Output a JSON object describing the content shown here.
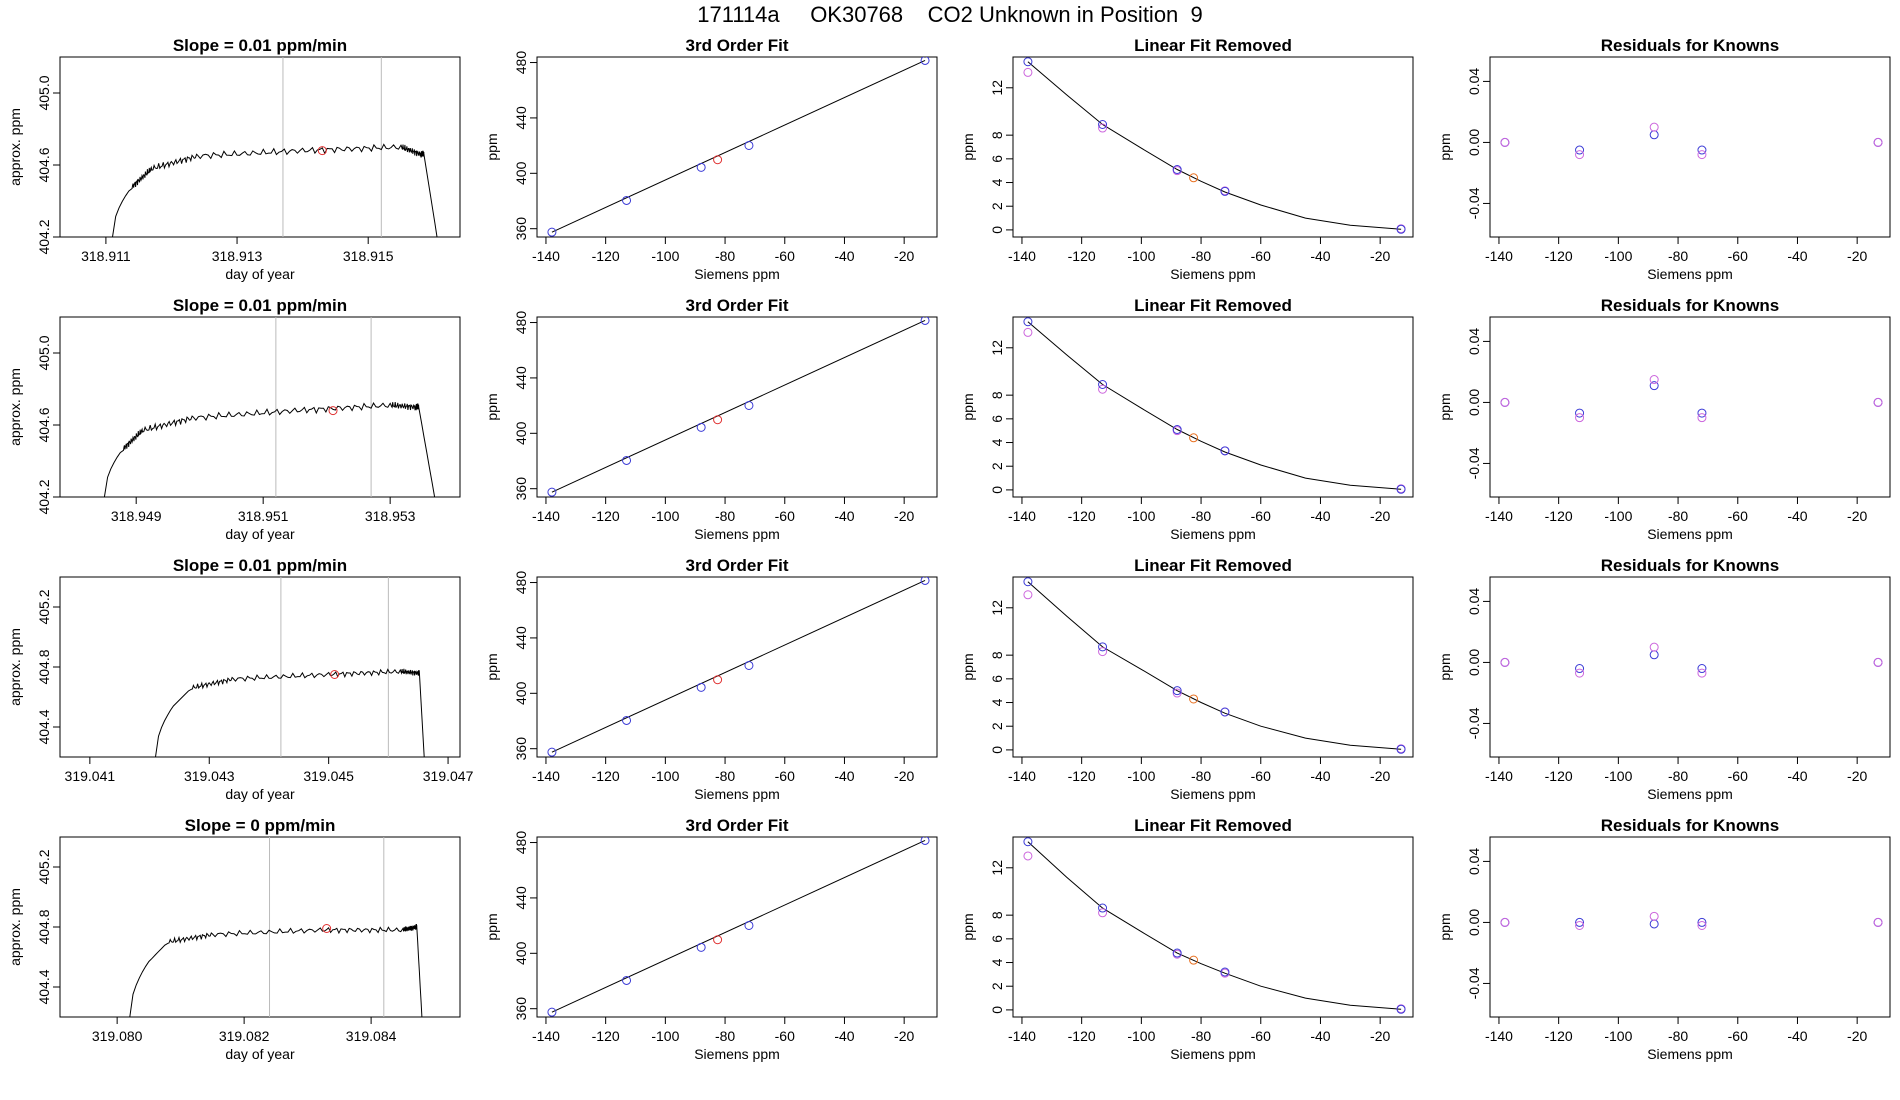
{
  "title": "171114a     OK30768    CO2 Unknown in Position  9",
  "colors": {
    "trace": "#000000",
    "marker_red": "#e03030",
    "known": "#3a3ad6",
    "fit": "#cc66dd",
    "unknown": "#e87020",
    "vline": "#bbbbbb"
  },
  "chart_data": [
    {
      "type": "line",
      "row": 1,
      "col": 1,
      "title": "Slope =  0.01  ppm/min",
      "xlabel": "day of year",
      "ylabel": "approx. ppm",
      "xlim": [
        318.9103,
        318.9164
      ],
      "ylim": [
        404.2,
        405.2
      ],
      "xticks": [
        318.911,
        318.913,
        318.915
      ],
      "yticks": [
        404.2,
        404.6,
        405.0
      ],
      "series": [
        {
          "x": [
            318.9111,
            318.9114,
            318.9117,
            318.9124,
            318.914,
            318.9155,
            318.9158,
            318.91585,
            318.91605
          ],
          "y": [
            404.2,
            404.48,
            404.58,
            404.65,
            404.68,
            404.7,
            404.66,
            404.66,
            404.2
          ]
        }
      ],
      "vlines": [
        318.9137,
        318.9152
      ],
      "marker": {
        "x": 318.9143,
        "y": 404.68
      }
    },
    {
      "type": "line",
      "row": 2,
      "col": 1,
      "title": "Slope =  0.01  ppm/min",
      "xlabel": "day of year",
      "ylabel": "approx. ppm",
      "xlim": [
        318.9478,
        318.9541
      ],
      "ylim": [
        404.2,
        405.2
      ],
      "xticks": [
        318.949,
        318.951,
        318.953
      ],
      "yticks": [
        404.2,
        404.6,
        405.0
      ],
      "series": [
        {
          "x": [
            318.9485,
            318.9488,
            318.9491,
            318.9499,
            318.9515,
            318.953,
            318.9534,
            318.95345,
            318.9537
          ],
          "y": [
            404.2,
            404.47,
            404.57,
            404.64,
            404.68,
            404.71,
            404.7,
            404.7,
            404.2
          ]
        }
      ],
      "vlines": [
        318.9512,
        318.9527
      ],
      "marker": {
        "x": 318.9521,
        "y": 404.68
      }
    },
    {
      "type": "line",
      "row": 3,
      "col": 1,
      "title": "Slope =  0.01  ppm/min",
      "xlabel": "day of year",
      "ylabel": "approx. ppm",
      "xlim": [
        319.0405,
        319.0472
      ],
      "ylim": [
        404.2,
        405.4
      ],
      "xticks": [
        319.041,
        319.043,
        319.045,
        319.047
      ],
      "yticks": [
        404.4,
        404.8,
        405.2
      ],
      "series": [
        {
          "x": [
            319.0421,
            319.0424,
            319.0427,
            319.0434,
            319.045,
            319.0462,
            319.0465,
            319.04652,
            319.0466
          ],
          "y": [
            404.2,
            404.54,
            404.66,
            404.72,
            404.75,
            404.77,
            404.76,
            404.76,
            404.2
          ]
        }
      ],
      "vlines": [
        319.0442,
        319.046
      ],
      "marker": {
        "x": 319.0451,
        "y": 404.75
      }
    },
    {
      "type": "line",
      "row": 4,
      "col": 1,
      "title": "Slope =  0  ppm/min",
      "xlabel": "day of year",
      "ylabel": "approx. ppm",
      "xlim": [
        319.0791,
        319.0854
      ],
      "ylim": [
        404.2,
        405.4
      ],
      "xticks": [
        319.08,
        319.082,
        319.084
      ],
      "yticks": [
        404.4,
        404.8,
        405.2
      ],
      "series": [
        {
          "x": [
            319.0802,
            319.0805,
            319.0808,
            319.0815,
            319.0832,
            319.0845,
            319.0847,
            319.08472,
            319.0848
          ],
          "y": [
            404.2,
            404.57,
            404.7,
            404.75,
            404.78,
            404.78,
            404.8,
            404.8,
            404.2
          ]
        }
      ],
      "vlines": [
        319.0824,
        319.0842
      ],
      "marker": {
        "x": 319.0833,
        "y": 404.79
      }
    },
    {
      "type": "scatter",
      "row": 1,
      "col": 2,
      "title": "3rd Order Fit",
      "xlabel": "Siemens ppm",
      "ylabel": "ppm",
      "xlim": [
        -143,
        -9
      ],
      "ylim": [
        354,
        484
      ],
      "xticks": [
        -140,
        -120,
        -100,
        -80,
        -60,
        -40,
        -20
      ],
      "yticks": [
        360,
        400,
        440,
        480
      ],
      "fit": {
        "type": "linear",
        "x": [
          -138,
          -13
        ],
        "y": [
          357.5,
          481.5
        ]
      },
      "knowns": {
        "x": [
          -138,
          -113,
          -88,
          -72,
          -13
        ],
        "y": [
          357.5,
          380.4,
          404.3,
          420.1,
          481.5
        ]
      },
      "unknown": {
        "x": -82.5,
        "y": 409.8
      }
    },
    {
      "type": "scatter",
      "row": 2,
      "col": 2,
      "title": "3rd Order Fit",
      "xlabel": "Siemens ppm",
      "ylabel": "ppm",
      "xlim": [
        -143,
        -9
      ],
      "ylim": [
        354,
        484
      ],
      "xticks": [
        -140,
        -120,
        -100,
        -80,
        -60,
        -40,
        -20
      ],
      "yticks": [
        360,
        400,
        440,
        480
      ],
      "fit": {
        "type": "linear",
        "x": [
          -138,
          -13
        ],
        "y": [
          357.5,
          481.5
        ]
      },
      "knowns": {
        "x": [
          -138,
          -113,
          -88,
          -72,
          -13
        ],
        "y": [
          357.5,
          380.4,
          404.3,
          420.1,
          481.5
        ]
      },
      "unknown": {
        "x": -82.5,
        "y": 409.8
      }
    },
    {
      "type": "scatter",
      "row": 3,
      "col": 2,
      "title": "3rd Order Fit",
      "xlabel": "Siemens ppm",
      "ylabel": "ppm",
      "xlim": [
        -143,
        -9
      ],
      "ylim": [
        354,
        484
      ],
      "xticks": [
        -140,
        -120,
        -100,
        -80,
        -60,
        -40,
        -20
      ],
      "yticks": [
        360,
        400,
        440,
        480
      ],
      "fit": {
        "type": "linear",
        "x": [
          -138,
          -13
        ],
        "y": [
          357.5,
          481.5
        ]
      },
      "knowns": {
        "x": [
          -138,
          -113,
          -88,
          -72,
          -13
        ],
        "y": [
          357.5,
          380.4,
          404.3,
          420.1,
          481.5
        ]
      },
      "unknown": {
        "x": -82.5,
        "y": 409.8
      }
    },
    {
      "type": "scatter",
      "row": 4,
      "col": 2,
      "title": "3rd Order Fit",
      "xlabel": "Siemens ppm",
      "ylabel": "ppm",
      "xlim": [
        -143,
        -9
      ],
      "ylim": [
        354,
        484
      ],
      "xticks": [
        -140,
        -120,
        -100,
        -80,
        -60,
        -40,
        -20
      ],
      "yticks": [
        360,
        400,
        440,
        480
      ],
      "fit": {
        "type": "linear",
        "x": [
          -138,
          -13
        ],
        "y": [
          357.5,
          481.5
        ]
      },
      "knowns": {
        "x": [
          -138,
          -113,
          -88,
          -72,
          -13
        ],
        "y": [
          357.5,
          380.4,
          404.3,
          420.1,
          481.5
        ]
      },
      "unknown": {
        "x": -82.5,
        "y": 409.8
      }
    },
    {
      "type": "scatter",
      "row": 1,
      "col": 3,
      "title": "Linear Fit Removed",
      "xlabel": "Siemens ppm",
      "ylabel": "ppm",
      "xlim": [
        -143,
        -9
      ],
      "ylim": [
        -0.6,
        14.6
      ],
      "xticks": [
        -140,
        -120,
        -100,
        -80,
        -60,
        -40,
        -20
      ],
      "yticks": [
        0,
        2,
        4,
        6,
        8,
        12
      ],
      "curve": {
        "x": [
          -138,
          -125,
          -113,
          -100,
          -88,
          -80,
          -72,
          -60,
          -45,
          -30,
          -13
        ],
        "y": [
          14.2,
          11.4,
          8.9,
          6.9,
          5.1,
          4.1,
          3.2,
          2.1,
          1.0,
          0.4,
          0.05
        ]
      },
      "knowns": {
        "x": [
          -138,
          -113,
          -88,
          -72,
          -13
        ],
        "y": [
          14.2,
          8.9,
          5.1,
          3.25,
          0.05
        ]
      },
      "fitted": {
        "x": [
          -138,
          -113,
          -88,
          -72,
          -13
        ],
        "y": [
          13.3,
          8.6,
          5.0,
          3.3,
          0.1
        ]
      },
      "unknown": {
        "x": -82.5,
        "y": 4.4
      }
    },
    {
      "type": "scatter",
      "row": 2,
      "col": 3,
      "title": "Linear Fit Removed",
      "xlabel": "Siemens ppm",
      "ylabel": "ppm",
      "xlim": [
        -143,
        -9
      ],
      "ylim": [
        -0.6,
        14.6
      ],
      "xticks": [
        -140,
        -120,
        -100,
        -80,
        -60,
        -40,
        -20
      ],
      "yticks": [
        0,
        2,
        4,
        6,
        8,
        12
      ],
      "curve": {
        "x": [
          -138,
          -125,
          -113,
          -100,
          -88,
          -80,
          -72,
          -60,
          -45,
          -30,
          -13
        ],
        "y": [
          14.2,
          11.4,
          8.9,
          6.9,
          5.1,
          4.1,
          3.2,
          2.1,
          1.0,
          0.4,
          0.05
        ]
      },
      "knowns": {
        "x": [
          -138,
          -113,
          -88,
          -72,
          -13
        ],
        "y": [
          14.2,
          8.9,
          5.1,
          3.3,
          0.05
        ]
      },
      "fitted": {
        "x": [
          -138,
          -113,
          -88,
          -72,
          -13
        ],
        "y": [
          13.3,
          8.5,
          5.0,
          3.3,
          0.1
        ]
      },
      "unknown": {
        "x": -82.5,
        "y": 4.4
      }
    },
    {
      "type": "scatter",
      "row": 3,
      "col": 3,
      "title": "Linear Fit Removed",
      "xlabel": "Siemens ppm",
      "ylabel": "ppm",
      "xlim": [
        -143,
        -9
      ],
      "ylim": [
        -0.6,
        14.6
      ],
      "xticks": [
        -140,
        -120,
        -100,
        -80,
        -60,
        -40,
        -20
      ],
      "yticks": [
        0,
        2,
        4,
        6,
        8,
        12
      ],
      "curve": {
        "x": [
          -138,
          -125,
          -113,
          -100,
          -88,
          -80,
          -72,
          -60,
          -45,
          -30,
          -13
        ],
        "y": [
          14.2,
          11.3,
          8.7,
          6.8,
          5.0,
          4.0,
          3.1,
          2.0,
          1.0,
          0.4,
          0.05
        ]
      },
      "knowns": {
        "x": [
          -138,
          -113,
          -88,
          -72,
          -13
        ],
        "y": [
          14.2,
          8.7,
          5.0,
          3.2,
          0.05
        ]
      },
      "fitted": {
        "x": [
          -138,
          -113,
          -88,
          -72,
          -13
        ],
        "y": [
          13.1,
          8.3,
          4.8,
          3.2,
          0.1
        ]
      },
      "unknown": {
        "x": -82.5,
        "y": 4.3
      }
    },
    {
      "type": "scatter",
      "row": 4,
      "col": 3,
      "title": "Linear Fit Removed",
      "xlabel": "Siemens ppm",
      "ylabel": "ppm",
      "xlim": [
        -143,
        -9
      ],
      "ylim": [
        -0.6,
        14.6
      ],
      "xticks": [
        -140,
        -120,
        -100,
        -80,
        -60,
        -40,
        -20
      ],
      "yticks": [
        0,
        2,
        4,
        6,
        8,
        12
      ],
      "curve": {
        "x": [
          -138,
          -125,
          -113,
          -100,
          -88,
          -80,
          -72,
          -60,
          -45,
          -30,
          -13
        ],
        "y": [
          14.2,
          11.2,
          8.6,
          6.6,
          4.8,
          3.9,
          3.1,
          2.0,
          1.0,
          0.4,
          0.05
        ]
      },
      "knowns": {
        "x": [
          -138,
          -113,
          -88,
          -72,
          -13
        ],
        "y": [
          14.2,
          8.6,
          4.8,
          3.2,
          0.05
        ]
      },
      "fitted": {
        "x": [
          -138,
          -113,
          -88,
          -72,
          -13
        ],
        "y": [
          13.0,
          8.2,
          4.7,
          3.1,
          0.1
        ]
      },
      "unknown": {
        "x": -82.5,
        "y": 4.2
      }
    },
    {
      "type": "scatter",
      "row": 1,
      "col": 4,
      "title": "Residuals for Knowns",
      "xlabel": "Siemens ppm",
      "ylabel": "ppm",
      "xlim": [
        -143,
        -9
      ],
      "ylim": [
        -0.062,
        0.056
      ],
      "xticks": [
        -140,
        -120,
        -100,
        -80,
        -60,
        -40,
        -20
      ],
      "yticks": [
        -0.04,
        0.0,
        0.04
      ],
      "series": [
        {
          "name": "blue",
          "x": [
            -138,
            -113,
            -88,
            -72,
            -13
          ],
          "y": [
            0.0,
            -0.005,
            0.005,
            -0.005,
            0.0
          ]
        },
        {
          "name": "magenta",
          "x": [
            -138,
            -113,
            -88,
            -72,
            -13
          ],
          "y": [
            0.0,
            -0.008,
            0.01,
            -0.008,
            0.0
          ]
        }
      ]
    },
    {
      "type": "scatter",
      "row": 2,
      "col": 4,
      "title": "Residuals for Knowns",
      "xlabel": "Siemens ppm",
      "ylabel": "ppm",
      "xlim": [
        -143,
        -9
      ],
      "ylim": [
        -0.062,
        0.056
      ],
      "xticks": [
        -140,
        -120,
        -100,
        -80,
        -60,
        -40,
        -20
      ],
      "yticks": [
        -0.04,
        0.0,
        0.04
      ],
      "series": [
        {
          "name": "blue",
          "x": [
            -138,
            -113,
            -88,
            -72,
            -13
          ],
          "y": [
            0.0,
            -0.007,
            0.011,
            -0.007,
            0.0
          ]
        },
        {
          "name": "magenta",
          "x": [
            -138,
            -113,
            -88,
            -72,
            -13
          ],
          "y": [
            0.0,
            -0.01,
            0.015,
            -0.01,
            0.0
          ]
        }
      ]
    },
    {
      "type": "scatter",
      "row": 3,
      "col": 4,
      "title": "Residuals for Knowns",
      "xlabel": "Siemens ppm",
      "ylabel": "ppm",
      "xlim": [
        -143,
        -9
      ],
      "ylim": [
        -0.062,
        0.056
      ],
      "xticks": [
        -140,
        -120,
        -100,
        -80,
        -60,
        -40,
        -20
      ],
      "yticks": [
        -0.04,
        0.0,
        0.04
      ],
      "series": [
        {
          "name": "blue",
          "x": [
            -138,
            -113,
            -88,
            -72,
            -13
          ],
          "y": [
            0.0,
            -0.004,
            0.005,
            -0.004,
            0.0
          ]
        },
        {
          "name": "magenta",
          "x": [
            -138,
            -113,
            -88,
            -72,
            -13
          ],
          "y": [
            0.0,
            -0.007,
            0.01,
            -0.007,
            0.0
          ]
        }
      ]
    },
    {
      "type": "scatter",
      "row": 4,
      "col": 4,
      "title": "Residuals for Knowns",
      "xlabel": "Siemens ppm",
      "ylabel": "ppm",
      "xlim": [
        -143,
        -9
      ],
      "ylim": [
        -0.062,
        0.056
      ],
      "xticks": [
        -140,
        -120,
        -100,
        -80,
        -60,
        -40,
        -20
      ],
      "yticks": [
        -0.04,
        0.0,
        0.04
      ],
      "series": [
        {
          "name": "blue",
          "x": [
            -138,
            -113,
            -88,
            -72,
            -13
          ],
          "y": [
            0.0,
            0.0,
            -0.001,
            0.0,
            0.0
          ]
        },
        {
          "name": "magenta",
          "x": [
            -138,
            -113,
            -88,
            -72,
            -13
          ],
          "y": [
            0.0,
            -0.002,
            0.004,
            -0.002,
            0.0
          ]
        }
      ]
    }
  ]
}
